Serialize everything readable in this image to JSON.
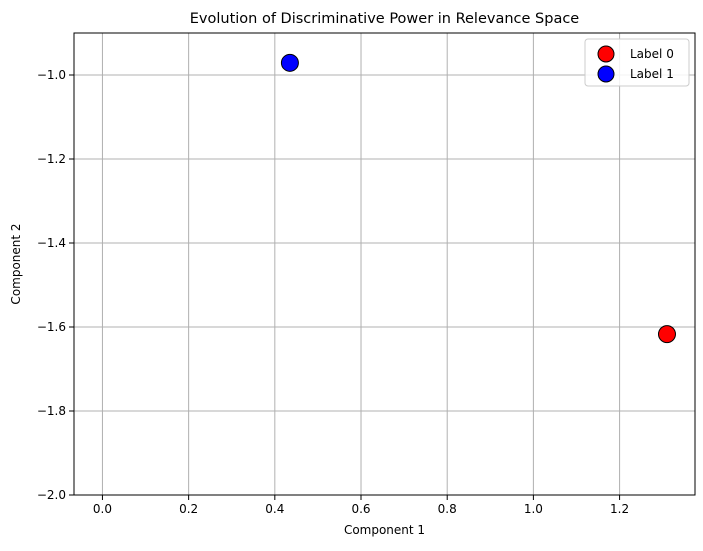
{
  "chart_data": {
    "type": "scatter",
    "title": "Evolution of Discriminative Power in Relevance Space",
    "xlabel": "Component 1",
    "ylabel": "Component 2",
    "xlim": [
      -0.066,
      1.375
    ],
    "ylim": [
      -2.0,
      -0.9
    ],
    "x_ticks": [
      0.0,
      0.2,
      0.4,
      0.6,
      0.8,
      1.0,
      1.2
    ],
    "x_tick_labels": [
      "0.0",
      "0.2",
      "0.4",
      "0.6",
      "0.8",
      "1.0",
      "1.2"
    ],
    "y_ticks": [
      -2.0,
      -1.8,
      -1.6,
      -1.4,
      -1.2,
      -1.0
    ],
    "y_tick_labels": [
      "−2.0",
      "−1.8",
      "−1.6",
      "−1.4",
      "−1.2",
      "−1.0"
    ],
    "grid": true,
    "legend_position": "top-right",
    "series": [
      {
        "name": "Label 0",
        "color": "#ff0000",
        "points": [
          {
            "x": 1.31,
            "y": -1.617
          }
        ]
      },
      {
        "name": "Label 1",
        "color": "#0000ff",
        "points": [
          {
            "x": 0.435,
            "y": -0.971
          }
        ]
      }
    ]
  }
}
